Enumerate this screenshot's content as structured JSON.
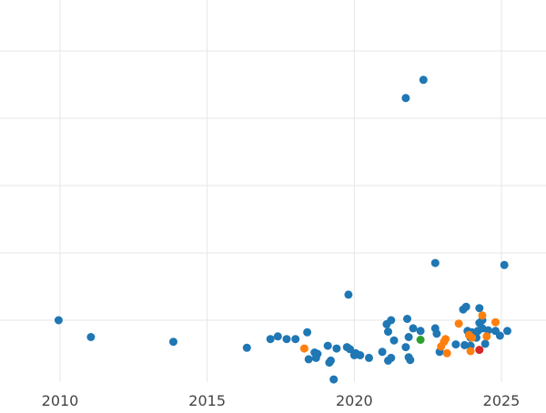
{
  "chart_data": {
    "type": "scatter",
    "title": "",
    "xlabel": "",
    "ylabel": "",
    "xlim": [
      2010,
      2025
    ],
    "x_ticks": [
      "2010",
      "2015",
      "2020",
      "2025"
    ],
    "grid": true,
    "legend": "none",
    "series": [
      {
        "color": "#1f77b4",
        "points": [
          [
            2009.95,
            0.0
          ],
          [
            2011.05,
            -0.25
          ],
          [
            2013.85,
            -0.32
          ],
          [
            2016.35,
            -0.41
          ],
          [
            2017.15,
            -0.28
          ],
          [
            2017.4,
            -0.24
          ],
          [
            2017.7,
            -0.28
          ],
          [
            2018.0,
            -0.28
          ],
          [
            2018.4,
            -0.18
          ],
          [
            2018.45,
            -0.58
          ],
          [
            2018.65,
            -0.48
          ],
          [
            2018.7,
            -0.56
          ],
          [
            2018.75,
            -0.5
          ],
          [
            2019.1,
            -0.38
          ],
          [
            2019.15,
            -0.63
          ],
          [
            2019.2,
            -0.6
          ],
          [
            2019.3,
            -0.88
          ],
          [
            2019.4,
            -0.42
          ],
          [
            2019.75,
            -0.4
          ],
          [
            2019.8,
            0.38
          ],
          [
            2019.85,
            -0.43
          ],
          [
            2020.0,
            -0.52
          ],
          [
            2020.05,
            -0.49
          ],
          [
            2020.2,
            -0.52
          ],
          [
            2020.5,
            -0.56
          ],
          [
            2020.95,
            -0.47
          ],
          [
            2021.1,
            -0.06
          ],
          [
            2021.15,
            -0.17
          ],
          [
            2021.15,
            -0.6
          ],
          [
            2021.25,
            0.0
          ],
          [
            2021.25,
            -0.56
          ],
          [
            2021.35,
            -0.3
          ],
          [
            2021.75,
            3.3
          ],
          [
            2021.75,
            -0.4
          ],
          [
            2021.8,
            0.02
          ],
          [
            2021.85,
            -0.25
          ],
          [
            2021.85,
            -0.55
          ],
          [
            2021.9,
            -0.59
          ],
          [
            2022.0,
            -0.12
          ],
          [
            2022.25,
            -0.16
          ],
          [
            2022.35,
            3.57
          ],
          [
            2022.75,
            0.85
          ],
          [
            2022.75,
            -0.12
          ],
          [
            2022.8,
            -0.2
          ],
          [
            2022.9,
            -0.47
          ],
          [
            2023.45,
            -0.36
          ],
          [
            2023.7,
            0.16
          ],
          [
            2023.75,
            -0.37
          ],
          [
            2023.8,
            0.2
          ],
          [
            2023.85,
            -0.16
          ],
          [
            2023.95,
            -0.38
          ],
          [
            2023.95,
            -0.26
          ],
          [
            2024.0,
            -0.18
          ],
          [
            2024.1,
            -0.23
          ],
          [
            2024.15,
            -0.26
          ],
          [
            2024.2,
            -0.16
          ],
          [
            2024.25,
            0.18
          ],
          [
            2024.25,
            -0.04
          ],
          [
            2024.35,
            -0.12
          ],
          [
            2024.35,
            0.0
          ],
          [
            2024.45,
            -0.35
          ],
          [
            2024.55,
            -0.15
          ],
          [
            2024.8,
            -0.16
          ],
          [
            2024.95,
            -0.23
          ],
          [
            2025.1,
            0.82
          ],
          [
            2025.2,
            -0.16
          ]
        ]
      },
      {
        "color": "#ff7f0e",
        "points": [
          [
            2018.3,
            -0.42
          ],
          [
            2022.95,
            -0.39
          ],
          [
            2023.05,
            -0.32
          ],
          [
            2023.1,
            -0.28
          ],
          [
            2023.15,
            -0.49
          ],
          [
            2023.55,
            -0.05
          ],
          [
            2023.9,
            -0.22
          ],
          [
            2023.95,
            -0.46
          ],
          [
            2024.0,
            -0.26
          ],
          [
            2024.35,
            0.07
          ],
          [
            2024.5,
            -0.24
          ],
          [
            2024.8,
            -0.03
          ]
        ]
      },
      {
        "color": "#2ca02c",
        "points": [
          [
            2022.25,
            -0.29
          ]
        ]
      },
      {
        "color": "#d62728",
        "points": [
          [
            2024.25,
            -0.44
          ]
        ]
      }
    ]
  }
}
